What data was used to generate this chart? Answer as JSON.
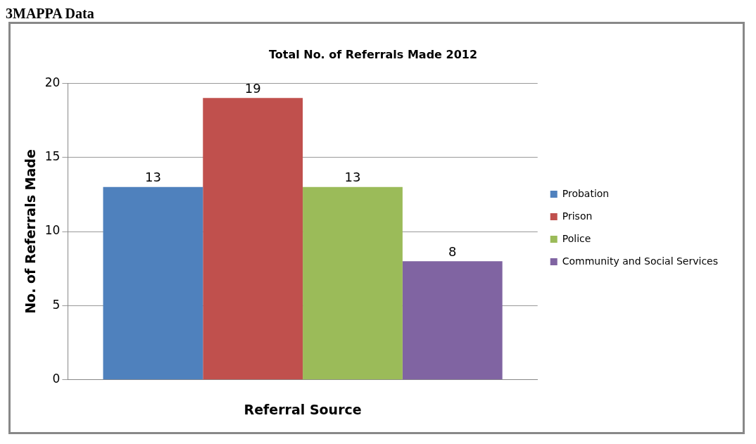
{
  "chart_data": {
    "type": "bar",
    "title": "Total No. of Referrals Made 2012",
    "xlabel": "Referral Source",
    "ylabel": "No. of Referrals Made",
    "annotations": [
      "3MAPPA Data"
    ],
    "categories": [
      null
    ],
    "series": [
      {
        "name": "Probation",
        "color": "#4f81bd",
        "values": [
          13
        ]
      },
      {
        "name": "Prison",
        "color": "#c0504d",
        "values": [
          19
        ]
      },
      {
        "name": "Police",
        "color": "#9bbb59",
        "values": [
          13
        ]
      },
      {
        "name": "Community and Social Services",
        "color": "#8064a2",
        "values": [
          8
        ]
      }
    ],
    "ylim": [
      0,
      20
    ],
    "yticks": [
      0,
      5,
      10,
      15,
      20
    ],
    "grid": "y",
    "legend": "right",
    "data_labels": true
  }
}
